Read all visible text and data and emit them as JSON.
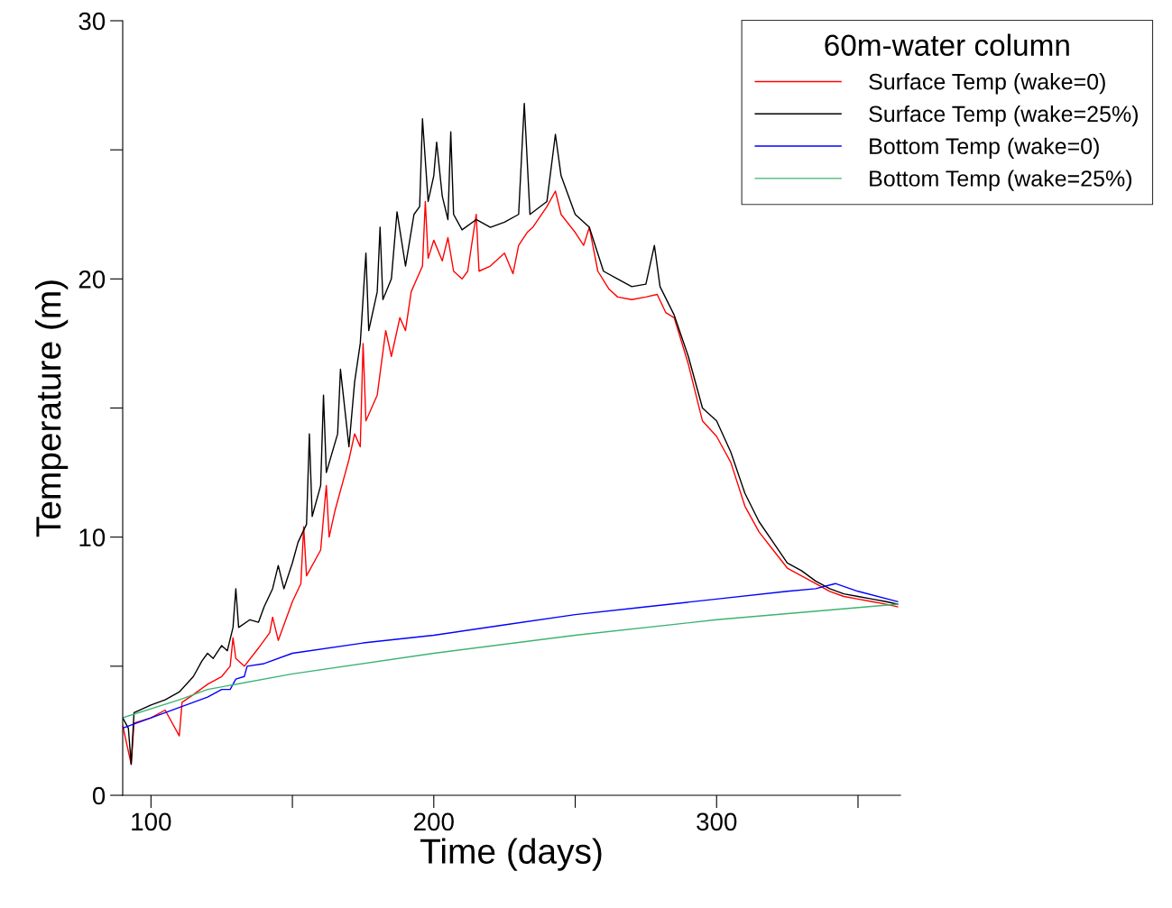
{
  "chart_data": {
    "type": "line",
    "xlabel": "Time (days)",
    "ylabel": "Temperature (m)",
    "legend_title": "60m-water column",
    "legend": "top right",
    "grid": false,
    "marker": "none",
    "line_style": "solid",
    "xlim": [
      90,
      365
    ],
    "xticks": [
      100,
      {
        "value": 150,
        "label": null
      },
      200,
      {
        "value": 250,
        "label": null
      },
      300,
      {
        "value": 350,
        "label": null
      }
    ],
    "ylim": [
      0,
      30
    ],
    "yticks": [
      0,
      {
        "value": 5,
        "label": null
      },
      10,
      {
        "value": 15,
        "label": null
      },
      20,
      {
        "value": 25,
        "label": null
      },
      30
    ],
    "series": [
      {
        "name": "Surface Temp (wake=0)",
        "color": "#ff0000",
        "x": [
          90,
          93,
          94,
          100,
          105,
          110,
          111,
          115,
          120,
          125,
          128,
          129,
          130,
          133,
          138,
          142,
          143,
          145,
          150,
          153,
          154,
          155,
          160,
          162,
          163,
          165,
          168,
          170,
          172,
          174,
          175,
          176,
          180,
          183,
          185,
          188,
          190,
          192,
          194,
          196,
          197,
          198,
          200,
          203,
          205,
          207,
          210,
          212,
          215,
          216,
          220,
          225,
          228,
          230,
          233,
          235,
          240,
          243,
          245,
          250,
          253,
          255,
          258,
          262,
          265,
          270,
          275,
          279,
          282,
          285,
          290,
          295,
          300,
          305,
          310,
          315,
          320,
          325,
          330,
          335,
          340,
          345,
          350,
          355,
          360,
          364
        ],
        "values": [
          2.7,
          1.2,
          2.8,
          3.0,
          3.3,
          2.3,
          3.6,
          3.9,
          4.3,
          4.6,
          5.0,
          6.1,
          5.3,
          5.0,
          5.7,
          6.3,
          6.9,
          6.0,
          7.5,
          8.2,
          10.4,
          8.5,
          9.5,
          12.0,
          10.0,
          11.0,
          12.2,
          13.0,
          14.0,
          13.5,
          17.5,
          14.5,
          15.5,
          18.0,
          17.0,
          18.5,
          18.0,
          19.5,
          20.0,
          20.5,
          23.0,
          20.8,
          21.5,
          20.7,
          21.6,
          20.3,
          20.0,
          20.3,
          22.5,
          20.3,
          20.5,
          21.0,
          20.2,
          21.3,
          21.8,
          22.0,
          22.8,
          23.4,
          22.5,
          21.8,
          21.3,
          22.0,
          20.3,
          19.6,
          19.3,
          19.2,
          19.3,
          19.4,
          18.7,
          18.5,
          16.7,
          14.5,
          13.9,
          12.9,
          11.2,
          10.2,
          9.5,
          8.8,
          8.5,
          8.2,
          7.9,
          7.7,
          7.6,
          7.5,
          7.4,
          7.3
        ]
      },
      {
        "name": "Surface Temp (wake=25%)",
        "color": "#000000",
        "x": [
          90,
          92,
          93,
          94,
          100,
          105,
          110,
          115,
          118,
          120,
          122,
          125,
          127,
          129,
          130,
          131,
          135,
          138,
          140,
          143,
          145,
          147,
          150,
          152,
          155,
          156,
          157,
          160,
          161,
          162,
          166,
          167,
          170,
          172,
          174,
          176,
          177,
          180,
          181,
          182,
          185,
          187,
          190,
          193,
          195,
          196,
          198,
          200,
          201,
          203,
          205,
          206,
          207,
          210,
          215,
          220,
          225,
          230,
          232,
          234,
          240,
          243,
          245,
          250,
          255,
          260,
          265,
          270,
          275,
          278,
          280,
          285,
          290,
          295,
          300,
          305,
          310,
          315,
          320,
          325,
          330,
          335,
          340,
          345,
          350,
          355,
          360,
          364
        ],
        "values": [
          3.0,
          2.6,
          1.2,
          3.2,
          3.5,
          3.7,
          4.0,
          4.6,
          5.2,
          5.5,
          5.3,
          5.8,
          5.6,
          6.5,
          8.0,
          6.5,
          6.8,
          6.7,
          7.3,
          8.0,
          8.9,
          8.0,
          9.0,
          9.8,
          10.5,
          14.0,
          10.8,
          12.0,
          15.5,
          12.5,
          14.0,
          16.5,
          13.5,
          16.0,
          17.5,
          21.0,
          18.0,
          19.5,
          22.0,
          19.2,
          20.0,
          22.6,
          20.5,
          22.5,
          22.8,
          26.2,
          23.0,
          24.0,
          25.3,
          23.2,
          22.3,
          25.7,
          22.5,
          21.9,
          22.3,
          22.0,
          22.2,
          22.5,
          26.8,
          22.5,
          23.0,
          25.6,
          24.0,
          22.5,
          22.0,
          20.3,
          20.0,
          19.7,
          19.8,
          21.3,
          19.7,
          18.6,
          17.0,
          15.0,
          14.5,
          13.3,
          11.7,
          10.6,
          9.8,
          9.0,
          8.7,
          8.3,
          8.0,
          7.8,
          7.7,
          7.6,
          7.5,
          7.4
        ]
      },
      {
        "name": "Bottom Temp (wake=0)",
        "color": "#0000ff",
        "x": [
          90,
          100,
          110,
          120,
          125,
          128,
          130,
          133,
          134,
          140,
          150,
          175,
          200,
          225,
          250,
          275,
          300,
          325,
          335,
          342,
          350,
          364
        ],
        "values": [
          2.6,
          3.0,
          3.4,
          3.8,
          4.1,
          4.1,
          4.5,
          4.6,
          5.0,
          5.1,
          5.5,
          5.9,
          6.2,
          6.6,
          7.0,
          7.3,
          7.6,
          7.9,
          8.0,
          8.2,
          7.9,
          7.5
        ]
      },
      {
        "name": "Bottom Temp (wake=25%)",
        "color": "#3cb371",
        "x": [
          90,
          110,
          120,
          150,
          200,
          250,
          300,
          364
        ],
        "values": [
          3.0,
          3.7,
          4.1,
          4.7,
          5.5,
          6.2,
          6.8,
          7.4
        ]
      }
    ]
  }
}
